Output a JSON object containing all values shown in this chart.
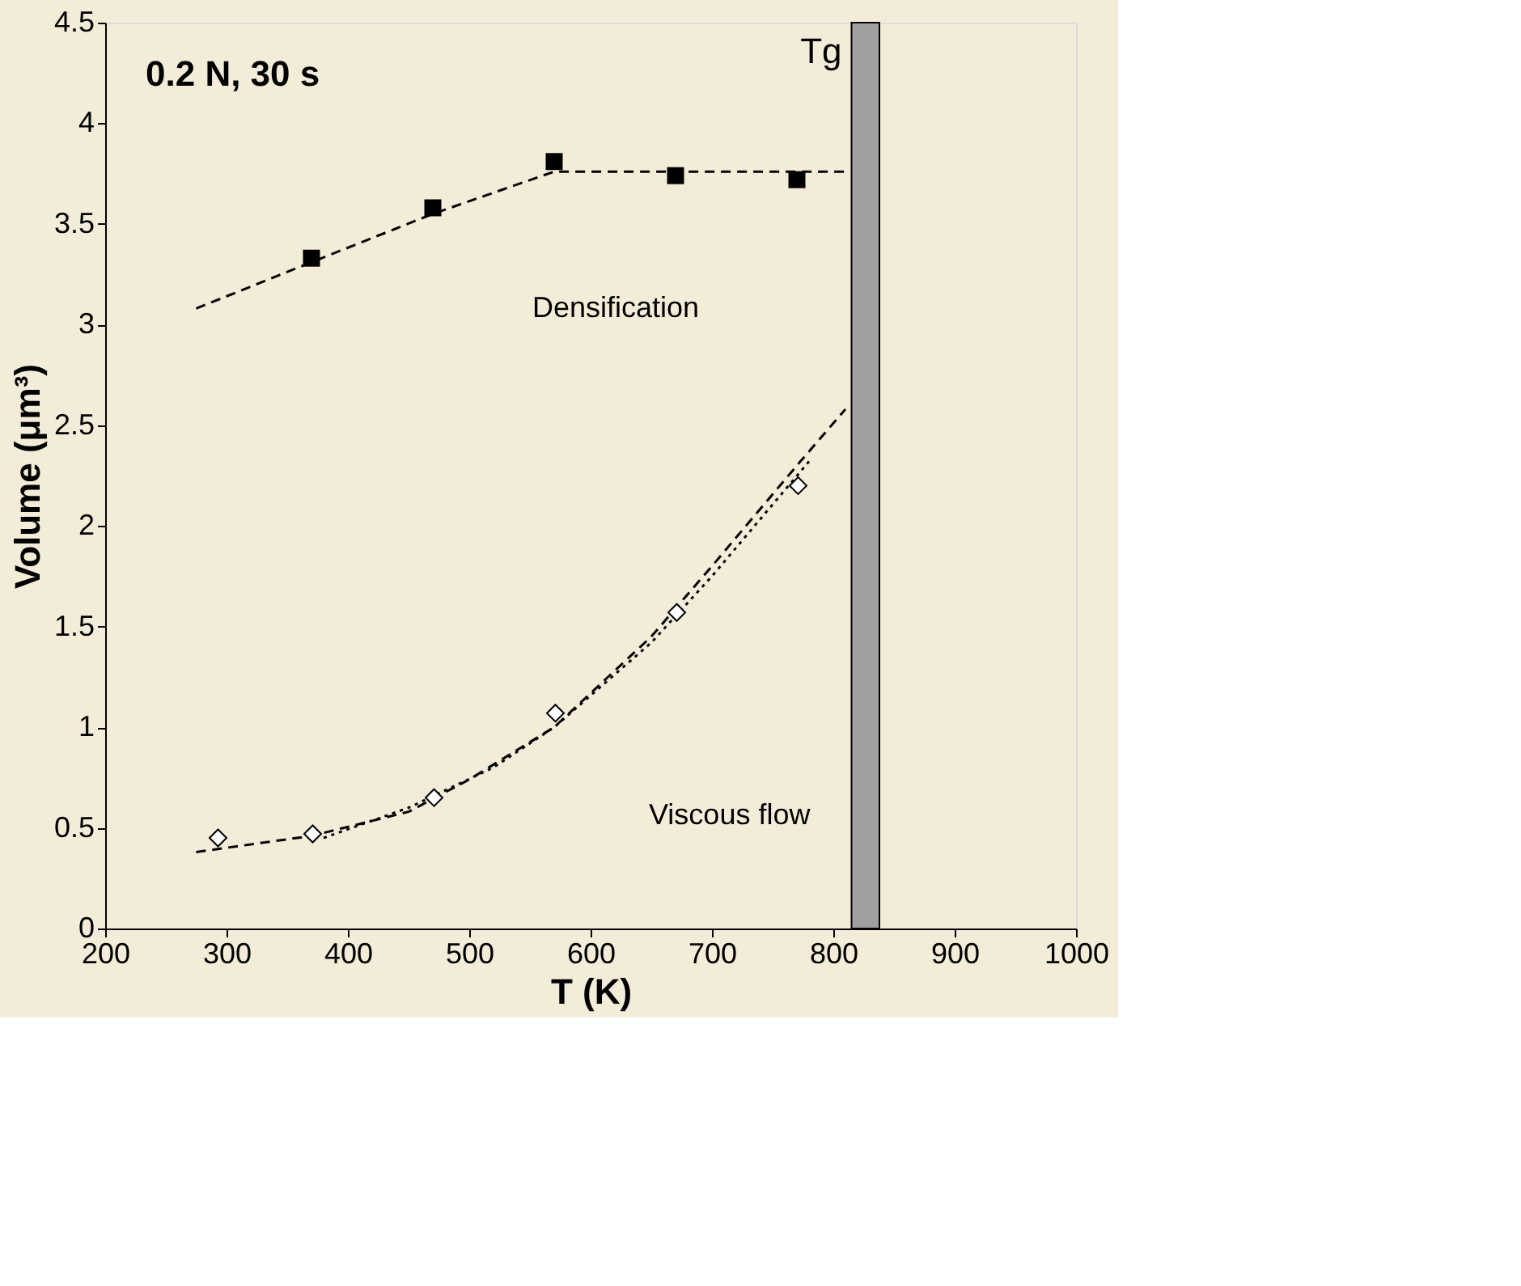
{
  "chart_data": {
    "type": "scatter",
    "xlabel": "T (K)",
    "ylabel": "Volume (μm³)",
    "xlim": [
      200,
      1000
    ],
    "xticks": [
      200,
      300,
      400,
      500,
      600,
      700,
      800,
      900,
      {
        "value": 1000,
        "label": "1000"
      }
    ],
    "ylim": [
      0,
      4.5
    ],
    "yticks": [
      {
        "value": 0,
        "label": "0"
      },
      0.5,
      {
        "value": 1,
        "label": "1"
      },
      1.5,
      {
        "value": 2,
        "label": "2"
      },
      2.5,
      {
        "value": 3,
        "label": "3"
      },
      3.5,
      {
        "value": 4,
        "label": "4"
      },
      4.5
    ],
    "grid": false,
    "series": [
      {
        "type": "line",
        "color": "#000000",
        "line_style": "dashed",
        "x": [
          275,
          370,
          470,
          570,
          670,
          810
        ],
        "values": [
          3.08,
          3.31,
          3.55,
          3.76,
          3.76,
          3.76
        ]
      },
      {
        "type": "line",
        "color": "#000000",
        "line_style": "dashed",
        "x": [
          275,
          370,
          450,
          500,
          570,
          650,
          700,
          770,
          810
        ],
        "values": [
          0.38,
          0.46,
          0.58,
          0.74,
          1.0,
          1.45,
          1.8,
          2.3,
          2.58
        ]
      },
      {
        "type": "line",
        "color": "#000000",
        "line_style": "dotted",
        "x": [
          380,
          450,
          520,
          570,
          650,
          700,
          780
        ],
        "values": [
          0.45,
          0.6,
          0.8,
          1.0,
          1.42,
          1.75,
          2.32
        ]
      },
      {
        "color": "#000000",
        "marker": "square",
        "x": [
          370,
          470,
          570,
          670,
          770
        ],
        "values": [
          3.33,
          3.58,
          3.81,
          3.74,
          3.72
        ]
      },
      {
        "color": "#000000",
        "marker": "diamond",
        "x": [
          293,
          371,
          471,
          571,
          671,
          771
        ],
        "values": [
          0.45,
          0.47,
          0.65,
          1.07,
          1.57,
          2.2
        ]
      }
    ],
    "bands": [
      {
        "axis": "x",
        "from": 815,
        "to": 838,
        "label": "Tg",
        "color": "#a0a0a0"
      }
    ],
    "annotations": [
      "0.2 N, 30 s",
      "Densification",
      "Viscous flow"
    ]
  }
}
